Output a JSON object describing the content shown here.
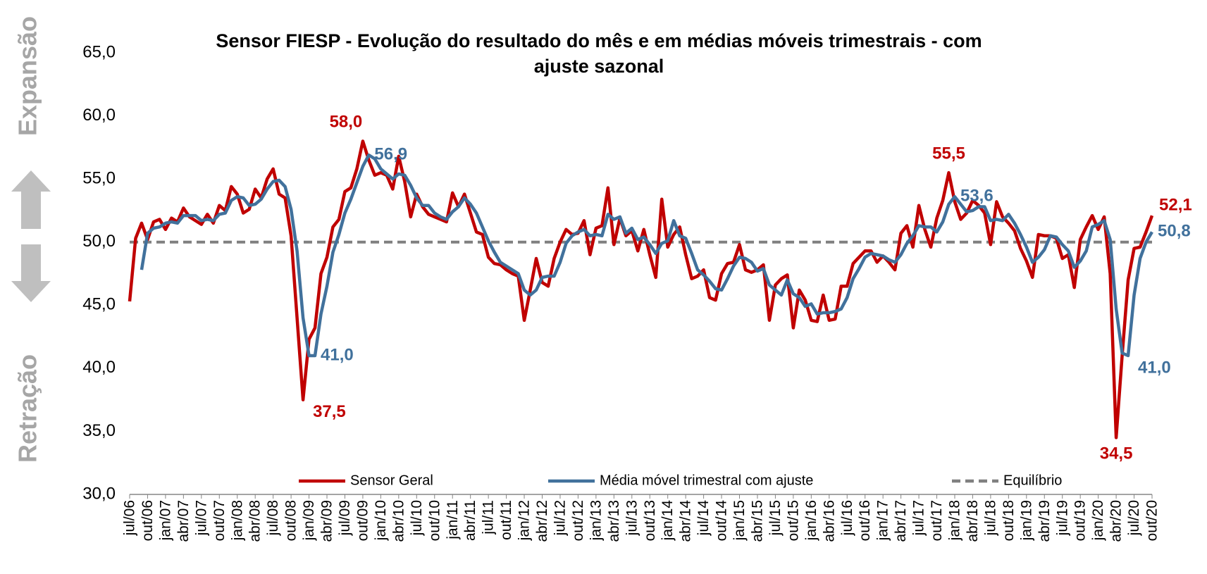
{
  "chart_data": {
    "type": "line",
    "title": "Sensor FIESP - Evolução do resultado do mês e em médias móveis trimestrais - com ajuste sazonal",
    "side_labels": {
      "top": "Expansão",
      "bottom": "Retração"
    },
    "categories": [
      "jul/06",
      null,
      null,
      "out/06",
      null,
      null,
      "jan/07",
      null,
      null,
      "abr/07",
      null,
      null,
      "jul/07",
      null,
      null,
      "out/07",
      null,
      null,
      "jan/08",
      null,
      null,
      "abr/08",
      null,
      null,
      "jul/08",
      null,
      null,
      "out/08",
      null,
      null,
      "jan/09",
      null,
      null,
      "abr/09",
      null,
      null,
      "jul/09",
      null,
      null,
      "out/09",
      null,
      null,
      "jan/10",
      null,
      null,
      "abr/10",
      null,
      null,
      "jul/10",
      null,
      null,
      "out/10",
      null,
      null,
      "jan/11",
      null,
      null,
      "abr/11",
      null,
      null,
      "jul/11",
      null,
      null,
      "out/11",
      null,
      null,
      "jan/12",
      null,
      null,
      "abr/12",
      null,
      null,
      "jul/12",
      null,
      null,
      "out/12",
      null,
      null,
      "jan/13",
      null,
      null,
      "abr/13",
      null,
      null,
      "jul/13",
      null,
      null,
      "out/13",
      null,
      null,
      "jan/14",
      null,
      null,
      "abr/14",
      null,
      null,
      "jul/14",
      null,
      null,
      "out/14",
      null,
      null,
      "jan/15",
      null,
      null,
      "abr/15",
      null,
      null,
      "jul/15",
      null,
      null,
      "out/15",
      null,
      null,
      "jan/16",
      null,
      null,
      "abr/16",
      null,
      null,
      "jul/16",
      null,
      null,
      "out/16",
      null,
      null,
      "jan/17",
      null,
      null,
      "abr/17",
      null,
      null,
      "jul/17",
      null,
      null,
      "out/17",
      null,
      null,
      "jan/18",
      null,
      null,
      "abr/18",
      null,
      null,
      "jul/18",
      null,
      null,
      "out/18",
      null,
      null,
      "jan/19",
      null,
      null,
      "abr/19",
      null,
      null,
      "jul/19",
      null,
      null,
      "out/19",
      null,
      null,
      "jan/20",
      null,
      null,
      "abr/20",
      null,
      null,
      "jul/20",
      null,
      null,
      "out/20"
    ],
    "series": [
      {
        "name": "Sensor Geral",
        "color": "#c00000",
        "values": [
          45.3,
          50.3,
          51.5,
          50.2,
          51.6,
          51.8,
          51.0,
          51.9,
          51.6,
          52.7,
          52.0,
          51.7,
          51.4,
          52.2,
          51.5,
          52.9,
          52.5,
          54.4,
          53.8,
          52.3,
          52.6,
          54.2,
          53.5,
          55.0,
          55.8,
          53.8,
          53.5,
          50.5,
          44.0,
          37.5,
          42.3,
          43.2,
          47.5,
          48.8,
          51.2,
          51.8,
          54.0,
          54.3,
          55.8,
          58.0,
          56.5,
          55.3,
          55.5,
          55.3,
          54.2,
          56.8,
          54.8,
          52.0,
          53.8,
          52.8,
          52.2,
          52.0,
          51.8,
          51.6,
          53.9,
          52.8,
          53.8,
          52.3,
          50.8,
          50.6,
          48.8,
          48.3,
          48.2,
          47.8,
          47.5,
          47.3,
          43.8,
          46.2,
          48.7,
          46.8,
          46.5,
          48.7,
          50.0,
          51.0,
          50.6,
          50.7,
          51.7,
          49.0,
          51.1,
          51.3,
          54.3,
          49.8,
          51.9,
          50.5,
          50.9,
          49.3,
          51.0,
          49.0,
          47.2,
          53.4,
          49.6,
          50.6,
          51.2,
          49.0,
          47.1,
          47.3,
          47.8,
          45.6,
          45.4,
          47.5,
          48.3,
          48.4,
          49.8,
          47.8,
          47.6,
          47.8,
          48.2,
          43.8,
          46.6,
          47.1,
          47.4,
          43.2,
          46.2,
          45.4,
          43.8,
          43.7,
          45.8,
          43.8,
          43.9,
          46.5,
          46.5,
          48.3,
          48.8,
          49.3,
          49.3,
          48.4,
          48.9,
          48.4,
          47.8,
          50.7,
          51.3,
          49.6,
          52.9,
          51.0,
          49.6,
          51.9,
          53.3,
          55.5,
          53.2,
          51.8,
          52.3,
          53.3,
          52.9,
          52.3,
          49.8,
          53.2,
          52.0,
          51.5,
          50.9,
          49.5,
          48.5,
          47.2,
          50.6,
          50.5,
          50.5,
          50.3,
          48.7,
          49.0,
          46.4,
          50.2,
          51.2,
          52.1,
          51.0,
          52.0,
          47.5,
          34.5,
          41.0,
          47.0,
          49.5,
          49.6,
          50.8,
          52.1
        ]
      },
      {
        "name": "Média móvel trimestral com ajuste",
        "color": "#41719c",
        "values": [
          null,
          null,
          47.8,
          50.7,
          51.1,
          51.2,
          51.5,
          51.6,
          51.5,
          52.1,
          52.1,
          52.1,
          51.7,
          51.8,
          51.7,
          52.2,
          52.3,
          53.3,
          53.6,
          53.5,
          52.9,
          53.0,
          53.4,
          54.2,
          54.8,
          54.9,
          54.4,
          52.6,
          49.3,
          44.0,
          41.0,
          41.0,
          44.3,
          46.5,
          49.2,
          50.6,
          52.3,
          53.4,
          54.7,
          56.0,
          56.9,
          56.6,
          55.8,
          55.4,
          55.0,
          55.4,
          55.3,
          54.5,
          53.5,
          52.9,
          52.9,
          52.3,
          52.0,
          51.8,
          52.4,
          52.8,
          53.5,
          53.0,
          52.3,
          51.2,
          50.1,
          49.2,
          48.4,
          48.1,
          47.8,
          47.5,
          46.2,
          45.8,
          46.2,
          47.2,
          47.3,
          47.3,
          48.4,
          49.9,
          50.5,
          50.8,
          51.0,
          50.5,
          50.6,
          50.5,
          52.2,
          51.8,
          52.0,
          50.7,
          51.1,
          50.2,
          50.4,
          49.8,
          49.1,
          49.9,
          50.1,
          51.7,
          50.5,
          50.3,
          49.1,
          47.8,
          47.4,
          46.9,
          46.3,
          46.2,
          47.1,
          48.1,
          48.8,
          48.7,
          48.4,
          47.7,
          47.9,
          46.6,
          46.2,
          45.8,
          47.0,
          45.9,
          45.6,
          44.9,
          45.1,
          44.3,
          44.4,
          44.4,
          44.5,
          44.7,
          45.6,
          47.1,
          47.9,
          48.8,
          49.1,
          49.0,
          48.9,
          48.6,
          48.4,
          49.0,
          49.9,
          50.5,
          51.3,
          51.2,
          51.2,
          50.8,
          51.6,
          53.0,
          53.6,
          53.0,
          52.4,
          52.5,
          52.8,
          52.8,
          51.7,
          51.8,
          51.7,
          52.2,
          51.5,
          50.6,
          49.6,
          48.4,
          48.8,
          49.4,
          50.5,
          50.4,
          49.8,
          49.3,
          48.0,
          48.5,
          49.3,
          51.2,
          51.4,
          51.7,
          50.2,
          44.7,
          41.2,
          41.0,
          45.8,
          48.7,
          50.0,
          50.8
        ]
      }
    ],
    "reference_line": {
      "name": "Equilíbrio",
      "value": 50,
      "color": "#808080"
    },
    "annotations": [
      {
        "series": 0,
        "index": 39,
        "label": "58,0",
        "position": "above"
      },
      {
        "series": 1,
        "index": 40,
        "label": "56,9",
        "position": "right"
      },
      {
        "series": 1,
        "index": 31,
        "label": "41,0",
        "position": "right"
      },
      {
        "series": 0,
        "index": 29,
        "label": "37,5",
        "position": "below-right"
      },
      {
        "series": 0,
        "index": 137,
        "label": "55,5",
        "position": "above"
      },
      {
        "series": 1,
        "index": 138,
        "label": "53,6",
        "position": "right"
      },
      {
        "series": 0,
        "index": 165,
        "label": "34,5",
        "position": "below"
      },
      {
        "series": 1,
        "index": 167,
        "label": "41,0",
        "position": "below-right"
      },
      {
        "series": 0,
        "index": 171,
        "label": "52,1",
        "position": "right-up"
      },
      {
        "series": 1,
        "index": 171,
        "label": "50,8",
        "position": "right"
      }
    ],
    "ylim": [
      30,
      65
    ],
    "yticks": [
      {
        "value": 30,
        "label": "30,0"
      },
      {
        "value": 35,
        "label": "35,0"
      },
      {
        "value": 40,
        "label": "40,0"
      },
      {
        "value": 45,
        "label": "45,0"
      },
      {
        "value": 50,
        "label": "50,0"
      },
      {
        "value": 55,
        "label": "55,0"
      },
      {
        "value": 60,
        "label": "60,0"
      },
      {
        "value": 65,
        "label": "65,0"
      }
    ],
    "grid": false,
    "legend": "bottom"
  }
}
